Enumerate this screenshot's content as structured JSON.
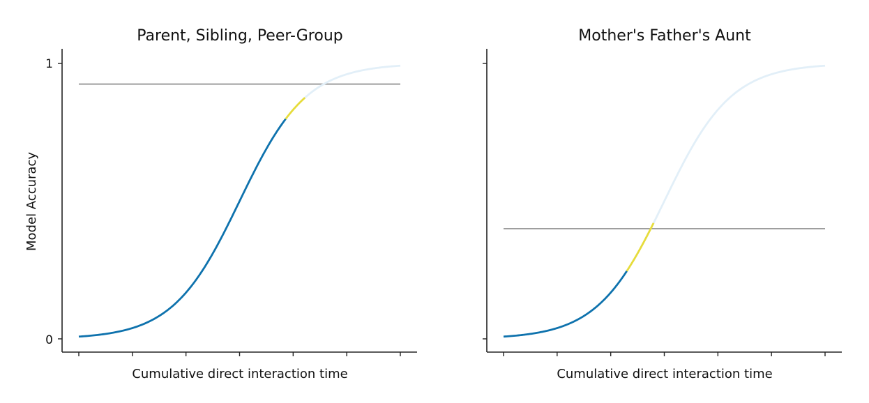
{
  "chart_data": [
    {
      "type": "line",
      "title": "Parent, Sibling, Peer-Group",
      "xlabel": "Cumulative direct interaction time",
      "ylabel": "Model Accuracy",
      "ylim": [
        0,
        1
      ],
      "xlim": [
        0,
        6
      ],
      "x_ticks": [
        0,
        1,
        2,
        3,
        4,
        5,
        6
      ],
      "y_ticks": [
        {
          "value": 0,
          "label": "0"
        },
        {
          "value": 1,
          "label": "1"
        }
      ],
      "grid": false,
      "curve": {
        "type": "sigmoid",
        "center": 3.0,
        "steepness": 1.6
      },
      "threshold": 0.925,
      "segments": [
        {
          "x_start": 0,
          "x_end": 3.86,
          "color": "#0e72ad"
        },
        {
          "x_start": 3.86,
          "x_end": 4.22,
          "color": "#e6dc3c"
        },
        {
          "x_start": 4.22,
          "x_end": 6,
          "color": "#e2eff8"
        }
      ],
      "threshold_color": "#9e9e9e"
    },
    {
      "type": "line",
      "title": "Mother's Father's Aunt",
      "xlabel": "Cumulative direct interaction time",
      "ylabel": "",
      "ylim": [
        0,
        1
      ],
      "xlim": [
        0,
        6
      ],
      "x_ticks": [
        0,
        1,
        2,
        3,
        4,
        5,
        6
      ],
      "y_ticks": [
        {
          "value": 0,
          "label": ""
        },
        {
          "value": 1,
          "label": ""
        }
      ],
      "grid": false,
      "curve": {
        "type": "sigmoid",
        "center": 3.0,
        "steepness": 1.6
      },
      "threshold": 0.4,
      "segments": [
        {
          "x_start": 0,
          "x_end": 2.3,
          "color": "#0e72ad"
        },
        {
          "x_start": 2.3,
          "x_end": 2.8,
          "color": "#e6dc3c"
        },
        {
          "x_start": 2.8,
          "x_end": 6,
          "color": "#e2eff8"
        }
      ],
      "threshold_color": "#9e9e9e"
    }
  ]
}
